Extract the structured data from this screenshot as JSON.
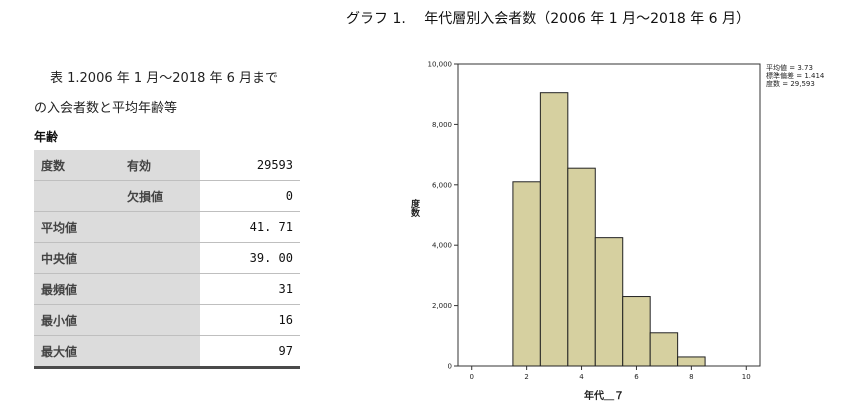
{
  "table": {
    "caption_line1": "表 1.2006 年 1 月～2018 年 6 月まで",
    "caption_line2": "の入会者数と平均年齢等",
    "variable": "年齢",
    "rows": [
      {
        "h1": "度数",
        "h2": "有効",
        "value": "29593"
      },
      {
        "h1": "",
        "h2": "欠損値",
        "value": "0"
      },
      {
        "h1": "平均値",
        "h2": "",
        "value": "41. 71"
      },
      {
        "h1": "中央値",
        "h2": "",
        "value": "39. 00"
      },
      {
        "h1": "最頻値",
        "h2": "",
        "value": "31"
      },
      {
        "h1": "最小値",
        "h2": "",
        "value": "16"
      },
      {
        "h1": "最大値",
        "h2": "",
        "value": "97"
      }
    ]
  },
  "chart_title": "グラフ 1.　 年代層別入会者数（2006 年 1 月～2018 年 6 月）",
  "chart_data": {
    "type": "bar",
    "title": "グラフ 1.　 年代層別入会者数（2006 年 1 月～2018 年 6 月）",
    "xlabel": "年代＿７",
    "ylabel": "度数",
    "x_ticks": [
      0,
      2,
      4,
      6,
      8,
      10
    ],
    "x_tick_labels": [
      "0",
      "2",
      "4",
      "6",
      "8",
      "10"
    ],
    "xlim": [
      -0.5,
      10.5
    ],
    "y_ticks": [
      0,
      2000,
      4000,
      6000,
      8000,
      10000
    ],
    "y_tick_labels": [
      "0",
      "2,000",
      "4,000",
      "6,000",
      "8,000",
      "10,000"
    ],
    "ylim": [
      0,
      10000
    ],
    "bins": [
      {
        "center": 2,
        "value": 6100
      },
      {
        "center": 3,
        "value": 9050
      },
      {
        "center": 4,
        "value": 6550
      },
      {
        "center": 5,
        "value": 4250
      },
      {
        "center": 6,
        "value": 2300
      },
      {
        "center": 7,
        "value": 1100
      },
      {
        "center": 8,
        "value": 300
      }
    ],
    "bin_width": 1,
    "stats_text": [
      "平均値 = 3.73",
      "標準偏差 = 1.414",
      "度数 = 29,593"
    ],
    "bar_color": "#d6d0a0",
    "bar_stroke": "#222222",
    "grid": false
  }
}
